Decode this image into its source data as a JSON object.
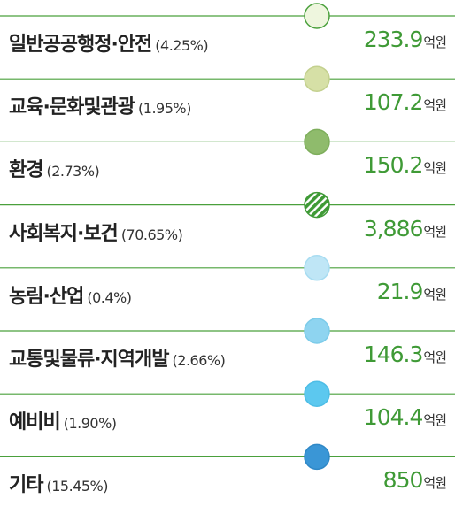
{
  "items": [
    {
      "name": "일반공공행정·안전",
      "percent": "(4.25%)",
      "amount": "233.9",
      "unit": "억원",
      "color": "#eef6de",
      "stroke": "#4aa03c"
    },
    {
      "name": "교육·문화및관광",
      "percent": "(1.95%)",
      "amount": "107.2",
      "unit": "억원",
      "color": "#d6e0a6",
      "stroke": "#c3d08e"
    },
    {
      "name": "환경",
      "percent": "(2.73%)",
      "amount": "150.2",
      "unit": "억원",
      "color": "#8fbb6c",
      "stroke": "#7eae5c"
    },
    {
      "name": "사회복지·보건",
      "percent": "(70.65%)",
      "amount": "3,886",
      "unit": "억원",
      "color": "#3f9a36",
      "stroke": "#3f9a36",
      "pattern": "hatch"
    },
    {
      "name": "농림·산업",
      "percent": "(0.4%)",
      "amount": "21.9",
      "unit": "억원",
      "color": "#bfe6f6",
      "stroke": "#a7dcf1"
    },
    {
      "name": "교통및물류·지역개발",
      "percent": "(2.66%)",
      "amount": "146.3",
      "unit": "억원",
      "color": "#8ed4f0",
      "stroke": "#7ccbe9"
    },
    {
      "name": "예비비",
      "percent": "(1.90%)",
      "amount": "104.4",
      "unit": "억원",
      "color": "#5cc8ef",
      "stroke": "#4dbde6"
    },
    {
      "name": "기타",
      "percent": "(15.45%)",
      "amount": "850",
      "unit": "억원",
      "color": "#3a96d6",
      "stroke": "#2f88c6"
    }
  ]
}
